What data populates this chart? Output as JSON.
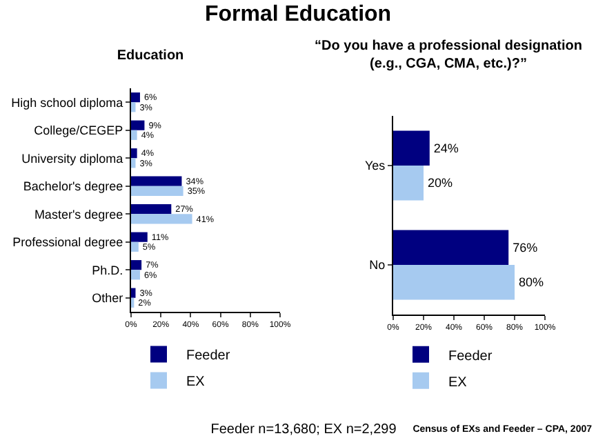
{
  "chart_data": [
    {
      "type": "bar",
      "title": "Formal Education",
      "subtitle": "Education",
      "orientation": "horizontal",
      "categories": [
        "High school diploma",
        "College/CEGEP",
        "University diploma",
        "Bachelor's degree",
        "Master's degree",
        "Professional degree",
        "Ph.D.",
        "Other"
      ],
      "series": [
        {
          "name": "Feeder",
          "color": "#000080",
          "values": [
            6,
            9,
            4,
            34,
            27,
            11,
            7,
            3
          ],
          "value_labels": [
            "6%",
            "9%",
            "4%",
            "34%",
            "27%",
            "11%",
            "7%",
            "3%"
          ]
        },
        {
          "name": "EX",
          "color": "#a6caf0",
          "values": [
            3,
            4,
            3,
            35,
            41,
            5,
            6,
            2
          ],
          "value_labels": [
            "3%",
            "4%",
            "3%",
            "35%",
            "41%",
            "5%",
            "6%",
            "2%"
          ]
        }
      ],
      "xlim": [
        0,
        100
      ],
      "xticks": [
        {
          "value": 0,
          "label": "0%"
        },
        {
          "value": 20,
          "label": "20%"
        },
        {
          "value": 40,
          "label": "40%"
        },
        {
          "value": 60,
          "label": "60%"
        },
        {
          "value": 80,
          "label": "80%"
        },
        {
          "value": 100,
          "label": "100%"
        }
      ],
      "grid": false,
      "legend": "bottom left"
    },
    {
      "type": "bar",
      "title": "“Do you have a professional designation (e.g., CGA, CMA, etc.)?”",
      "orientation": "horizontal",
      "categories": [
        "Yes",
        "No"
      ],
      "series": [
        {
          "name": "Feeder",
          "color": "#000080",
          "values": [
            24,
            76
          ],
          "value_labels": [
            "24%",
            "76%"
          ]
        },
        {
          "name": "EX",
          "color": "#a6caf0",
          "values": [
            20,
            80
          ],
          "value_labels": [
            "20%",
            "80%"
          ]
        }
      ],
      "xlim": [
        0,
        100
      ],
      "xticks": [
        {
          "value": 0,
          "label": "0%"
        },
        {
          "value": 20,
          "label": "20%"
        },
        {
          "value": 40,
          "label": "40%"
        },
        {
          "value": 60,
          "label": "60%"
        },
        {
          "value": 80,
          "label": "80%"
        },
        {
          "value": 100,
          "label": "100%"
        }
      ],
      "grid": false,
      "legend": "bottom left",
      "annotations": [
        "Feeder n=13,680; EX n=2,299",
        "Census of EXs and Feeder – CPA, 2007"
      ]
    }
  ]
}
